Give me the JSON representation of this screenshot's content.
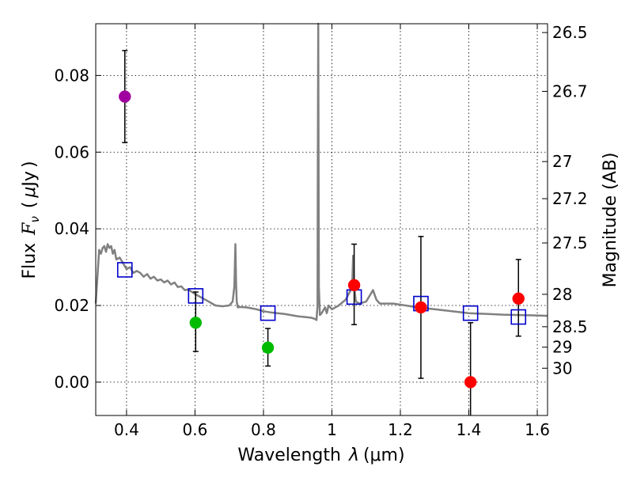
{
  "chart_data": {
    "type": "scatter",
    "xlabel": "Wavelength",
    "xlabel_symbol": "λ",
    "xlabel_unit": "(μm)",
    "ylabel": "Flux",
    "ylabel_symbol": "F",
    "ylabel_subscript": "ν",
    "ylabel_unit_open": "(",
    "ylabel_unit_mu": "μ",
    "ylabel_unit": "Jy",
    "ylabel_unit_close": ")",
    "y2label": "Magnitude (AB)",
    "xlim": [
      0.31,
      1.63
    ],
    "ylim": [
      -0.0087,
      0.0935
    ],
    "grid": true,
    "xticks": [
      0.4,
      0.6,
      0.8,
      1.0,
      1.2,
      1.4,
      1.6
    ],
    "xtick_labels": [
      "0.4",
      "0.6",
      "0.8",
      "1",
      "1.2",
      "1.4",
      "1.6"
    ],
    "yticks": [
      0.0,
      0.02,
      0.04,
      0.06,
      0.08
    ],
    "ytick_labels": [
      "0.00",
      "0.02",
      "0.04",
      "0.06",
      "0.08"
    ],
    "magnitude_ticks": [
      {
        "label": "26.5",
        "mag": 26.5
      },
      {
        "label": "26.7",
        "mag": 26.7
      },
      {
        "label": "27",
        "mag": 27.0
      },
      {
        "label": "27.2",
        "mag": 27.2
      },
      {
        "label": "27.5",
        "mag": 27.5
      },
      {
        "label": "28",
        "mag": 28.0
      },
      {
        "label": "28.5",
        "mag": 28.5
      },
      {
        "label": "29",
        "mag": 29.0
      },
      {
        "label": "30",
        "mag": 30.0
      }
    ],
    "sed_model": {
      "color": "#808080",
      "x": [
        0.31,
        0.32,
        0.325,
        0.33,
        0.335,
        0.34,
        0.345,
        0.35,
        0.355,
        0.36,
        0.365,
        0.37,
        0.38,
        0.39,
        0.4,
        0.41,
        0.42,
        0.43,
        0.44,
        0.45,
        0.46,
        0.47,
        0.48,
        0.49,
        0.5,
        0.51,
        0.52,
        0.53,
        0.54,
        0.55,
        0.56,
        0.57,
        0.58,
        0.6,
        0.62,
        0.64,
        0.66,
        0.68,
        0.7,
        0.71,
        0.715,
        0.718,
        0.72,
        0.722,
        0.725,
        0.73,
        0.75,
        0.78,
        0.8,
        0.82,
        0.84,
        0.86,
        0.88,
        0.9,
        0.92,
        0.94,
        0.95,
        0.955,
        0.958,
        0.959,
        0.96,
        0.961,
        0.962,
        0.965,
        0.97,
        0.98,
        0.985,
        0.99,
        1.0,
        1.02,
        1.04,
        1.055,
        1.06,
        1.062,
        1.065,
        1.07,
        1.08,
        1.1,
        1.12,
        1.13,
        1.14,
        1.18,
        1.25,
        1.3,
        1.35,
        1.4,
        1.45,
        1.5,
        1.55,
        1.6,
        1.63
      ],
      "y": [
        0.0205,
        0.0345,
        0.0335,
        0.035,
        0.0355,
        0.034,
        0.036,
        0.035,
        0.0355,
        0.0335,
        0.0345,
        0.032,
        0.0325,
        0.031,
        0.0295,
        0.03,
        0.0285,
        0.029,
        0.0285,
        0.0275,
        0.0282,
        0.027,
        0.0275,
        0.0265,
        0.0268,
        0.026,
        0.0265,
        0.0255,
        0.026,
        0.0248,
        0.025,
        0.024,
        0.0242,
        0.023,
        0.022,
        0.021,
        0.02,
        0.0198,
        0.02,
        0.021,
        0.025,
        0.036,
        0.0255,
        0.021,
        0.0195,
        0.0196,
        0.0195,
        0.019,
        0.0185,
        0.0182,
        0.018,
        0.0178,
        0.0175,
        0.0172,
        0.017,
        0.0168,
        0.0165,
        0.0162,
        0.02,
        0.06,
        0.095,
        0.06,
        0.025,
        0.0175,
        0.018,
        0.0195,
        0.018,
        0.02,
        0.019,
        0.02,
        0.0215,
        0.024,
        0.027,
        0.033,
        0.025,
        0.021,
        0.0205,
        0.021,
        0.024,
        0.0215,
        0.0205,
        0.0205,
        0.0195,
        0.019,
        0.0185,
        0.018,
        0.0178,
        0.0176,
        0.0175,
        0.0174,
        0.0173
      ]
    },
    "model_photometry": {
      "marker": "open-square",
      "color": "#0000cc",
      "points": [
        {
          "x": 0.395,
          "y": 0.0293
        },
        {
          "x": 0.602,
          "y": 0.0225
        },
        {
          "x": 0.813,
          "y": 0.018
        },
        {
          "x": 1.065,
          "y": 0.0222
        },
        {
          "x": 1.26,
          "y": 0.0205
        },
        {
          "x": 1.405,
          "y": 0.018
        },
        {
          "x": 1.545,
          "y": 0.017
        }
      ]
    },
    "observed_photometry": [
      {
        "x": 0.395,
        "y": 0.0745,
        "err_lo": 0.0625,
        "err_hi": 0.0865,
        "color": "#a000a0"
      },
      {
        "x": 0.602,
        "y": 0.0155,
        "err_lo": 0.008,
        "err_hi": 0.0235,
        "color": "#00bb00"
      },
      {
        "x": 0.813,
        "y": 0.009,
        "err_lo": 0.0042,
        "err_hi": 0.014,
        "color": "#00bb00"
      },
      {
        "x": 1.065,
        "y": 0.0253,
        "err_lo": 0.015,
        "err_hi": 0.036,
        "color": "#ff0000"
      },
      {
        "x": 1.26,
        "y": 0.0195,
        "err_lo": 0.001,
        "err_hi": 0.038,
        "color": "#ff0000"
      },
      {
        "x": 1.405,
        "y": 0.0,
        "err_lo": -0.0087,
        "err_hi": 0.0155,
        "color": "#ff0000"
      },
      {
        "x": 1.545,
        "y": 0.0218,
        "err_lo": 0.012,
        "err_hi": 0.032,
        "color": "#ff0000"
      }
    ]
  }
}
